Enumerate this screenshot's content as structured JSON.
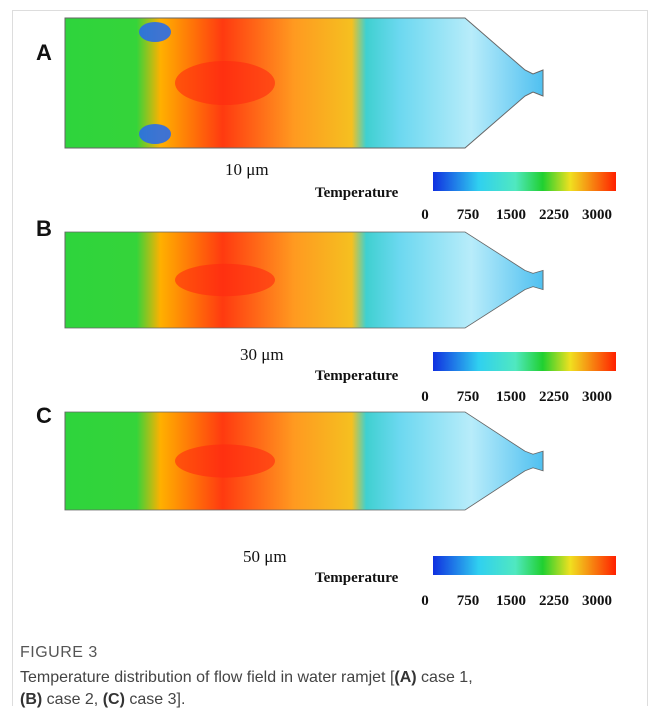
{
  "panels": [
    {
      "label": "A",
      "size": "10 μm",
      "colorbar": {
        "title": "Temperature",
        "ticks": [
          0,
          750,
          1500,
          2250,
          3000
        ]
      }
    },
    {
      "label": "B",
      "size": "30 μm",
      "colorbar": {
        "title": "Temperature",
        "ticks": [
          0,
          750,
          1500,
          2250,
          3000
        ]
      }
    },
    {
      "label": "C",
      "size": "50 μm",
      "colorbar": {
        "title": "Temperature",
        "ticks": [
          0,
          750,
          1500,
          2250,
          3000
        ]
      }
    }
  ],
  "figure": {
    "label": "FIGURE 3",
    "caption": [
      "Temperature distribution of flow field in water ramjet [",
      "(A)",
      " case 1, ",
      "(B)",
      " case 2, ",
      "(C)",
      " case 3]."
    ]
  }
}
